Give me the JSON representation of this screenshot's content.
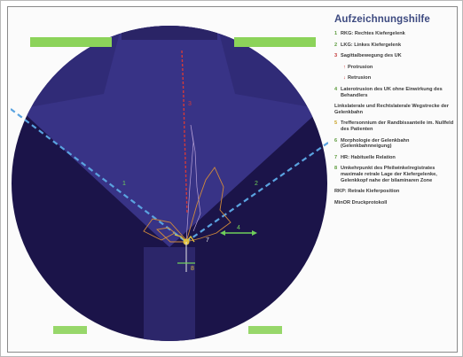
{
  "legend": {
    "title": "Aufzeichnungshilfe",
    "items": [
      {
        "num": "1",
        "text": "RKG: Rechtes Kiefergelenk",
        "color": "#5a9a3a"
      },
      {
        "num": "2",
        "text": "LKG: Linkes Kiefergelenk",
        "color": "#5a9a3a"
      },
      {
        "num": "3",
        "text": "Sagittalbewegung des UK",
        "color": "#c03030"
      },
      {
        "num": "",
        "text": "Protrusion",
        "color": "#c03030",
        "sub": true,
        "arrow": "↑"
      },
      {
        "num": "",
        "text": "Retrusion",
        "color": "#c03030",
        "sub": true,
        "arrow": "↓"
      },
      {
        "num": "4",
        "text": "Laterotrusion des UK ohne Einwirkung des Behandlers",
        "color": "#5a9a3a"
      },
      {
        "num": "",
        "text": "Linkslaterale und Rechtslaterale Wegstrecke der Gelenkbahn",
        "color": "#5a9a3a",
        "plain": true
      },
      {
        "num": "5",
        "text": "Treffersonnium der Randbissanteile im. Nullfeld des Patienten",
        "color": "#c8a020"
      },
      {
        "num": "6",
        "text": "Morphologie der Gelenkbahn (Gelenkbahnneigung)",
        "color": "#5a9a3a"
      },
      {
        "num": "7",
        "text": "HR: Habituelle Relation",
        "color": "#5a9a3a"
      },
      {
        "num": "8",
        "text": "Umkehrpunkt des Pfeilwinkelregistrates maximale retrale Lage der Kiefergelenke, Gelenkkopf nahe der bilaminaren Zone",
        "color": "#5a9a3a"
      },
      {
        "num": "",
        "text": "RKP: Retrale Kieferposition",
        "color": "#3a3a3a",
        "plain": true
      },
      {
        "num": "",
        "text": "MinOR Druckprotokoll",
        "color": "#3a3a3a",
        "plain": true
      }
    ]
  },
  "chart": {
    "label_left": "1",
    "label_right": "2",
    "label_center_top": "3",
    "label_center_bottom": "7",
    "label_right_lower": "4",
    "label_lower": "8",
    "colors": {
      "outer": "#1b1449",
      "sector": "#332f7a",
      "sector_light": "#3b3b8c",
      "dashed": "#5aa3e0",
      "red": "#d23a3a",
      "yellow": "#e0c040",
      "orange": "#d28a3a",
      "green": "#6fcf5a",
      "white": "#e8e8e8",
      "badge": "#8cd35a"
    }
  }
}
